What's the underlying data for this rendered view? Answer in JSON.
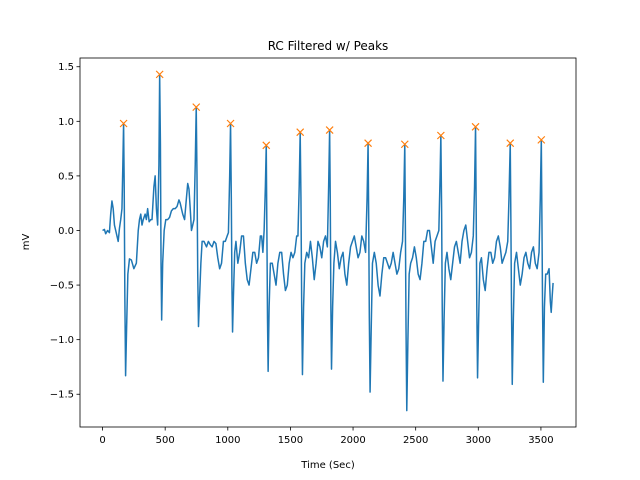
{
  "chart_data": {
    "type": "line",
    "title": "RC Filtered w/ Peaks",
    "xlabel": "Time (Sec)",
    "ylabel": "mV",
    "xlim": [
      -180,
      3780
    ],
    "ylim": [
      -1.8,
      1.58
    ],
    "xticks": [
      0,
      500,
      1000,
      1500,
      2000,
      2500,
      3000,
      3500
    ],
    "xtick_labels": [
      "0",
      "500",
      "1000",
      "1500",
      "2000",
      "2500",
      "3000",
      "3500"
    ],
    "yticks": [
      -1.5,
      -1.0,
      -0.5,
      0.0,
      0.5,
      1.0,
      1.5
    ],
    "ytick_labels": [
      "−1.5",
      "−1.0",
      "−0.5",
      "0.0",
      "0.5",
      "1.0",
      "1.5"
    ],
    "grid": false,
    "series": [
      {
        "color": "#1f77b4",
        "marker": "none",
        "points": [
          [
            0,
            0.0
          ],
          [
            15,
            0.01
          ],
          [
            25,
            -0.03
          ],
          [
            40,
            0.0
          ],
          [
            55,
            -0.02
          ],
          [
            65,
            0.15
          ],
          [
            75,
            0.27
          ],
          [
            85,
            0.2
          ],
          [
            95,
            0.05
          ],
          [
            105,
            0.0
          ],
          [
            115,
            -0.05
          ],
          [
            125,
            -0.1
          ],
          [
            135,
            0.02
          ],
          [
            145,
            0.1
          ],
          [
            155,
            0.2
          ],
          [
            162,
            0.6
          ],
          [
            168,
            0.98
          ],
          [
            173,
            0.4
          ],
          [
            178,
            -0.6
          ],
          [
            184,
            -1.33
          ],
          [
            192,
            -0.9
          ],
          [
            202,
            -0.4
          ],
          [
            215,
            -0.26
          ],
          [
            230,
            -0.27
          ],
          [
            250,
            -0.35
          ],
          [
            270,
            -0.3
          ],
          [
            285,
            0.0
          ],
          [
            295,
            0.1
          ],
          [
            305,
            0.15
          ],
          [
            315,
            0.05
          ],
          [
            325,
            0.1
          ],
          [
            340,
            0.15
          ],
          [
            350,
            0.1
          ],
          [
            360,
            0.2
          ],
          [
            372,
            0.08
          ],
          [
            385,
            0.1
          ],
          [
            395,
            0.1
          ],
          [
            410,
            0.4
          ],
          [
            420,
            0.5
          ],
          [
            430,
            0.2
          ],
          [
            440,
            0.05
          ],
          [
            450,
            0.6
          ],
          [
            456,
            1.43
          ],
          [
            462,
            0.8
          ],
          [
            467,
            -0.3
          ],
          [
            472,
            -0.82
          ],
          [
            480,
            -0.3
          ],
          [
            492,
            0.0
          ],
          [
            505,
            0.1
          ],
          [
            520,
            0.1
          ],
          [
            535,
            0.12
          ],
          [
            550,
            0.18
          ],
          [
            565,
            0.2
          ],
          [
            580,
            0.2
          ],
          [
            595,
            0.22
          ],
          [
            610,
            0.28
          ],
          [
            620,
            0.25
          ],
          [
            630,
            0.2
          ],
          [
            640,
            0.15
          ],
          [
            655,
            0.1
          ],
          [
            670,
            0.3
          ],
          [
            680,
            0.43
          ],
          [
            690,
            0.38
          ],
          [
            700,
            0.2
          ],
          [
            710,
            0.0
          ],
          [
            720,
            0.05
          ],
          [
            730,
            0.1
          ],
          [
            740,
            0.6
          ],
          [
            748,
            1.13
          ],
          [
            754,
            0.5
          ],
          [
            760,
            -0.4
          ],
          [
            766,
            -0.88
          ],
          [
            775,
            -0.6
          ],
          [
            785,
            -0.3
          ],
          [
            795,
            -0.1
          ],
          [
            810,
            -0.1
          ],
          [
            830,
            -0.15
          ],
          [
            845,
            -0.1
          ],
          [
            860,
            -0.13
          ],
          [
            875,
            -0.15
          ],
          [
            890,
            -0.1
          ],
          [
            905,
            -0.12
          ],
          [
            920,
            -0.25
          ],
          [
            935,
            -0.35
          ],
          [
            950,
            -0.3
          ],
          [
            965,
            -0.1
          ],
          [
            980,
            -0.1
          ],
          [
            995,
            -0.05
          ],
          [
            1005,
            -0.02
          ],
          [
            1015,
            0.5
          ],
          [
            1022,
            0.98
          ],
          [
            1028,
            0.3
          ],
          [
            1033,
            -0.5
          ],
          [
            1038,
            -0.93
          ],
          [
            1045,
            -0.6
          ],
          [
            1055,
            -0.2
          ],
          [
            1065,
            -0.1
          ],
          [
            1080,
            -0.3
          ],
          [
            1095,
            -0.2
          ],
          [
            1110,
            -0.05
          ],
          [
            1125,
            -0.05
          ],
          [
            1140,
            -0.3
          ],
          [
            1155,
            -0.45
          ],
          [
            1170,
            -0.5
          ],
          [
            1185,
            -0.35
          ],
          [
            1200,
            -0.2
          ],
          [
            1215,
            -0.2
          ],
          [
            1230,
            -0.3
          ],
          [
            1245,
            -0.25
          ],
          [
            1260,
            -0.05
          ],
          [
            1270,
            -0.05
          ],
          [
            1280,
            -0.2
          ],
          [
            1290,
            0.0
          ],
          [
            1300,
            0.4
          ],
          [
            1307,
            0.78
          ],
          [
            1312,
            0.0
          ],
          [
            1317,
            -0.8
          ],
          [
            1322,
            -1.29
          ],
          [
            1330,
            -0.7
          ],
          [
            1340,
            -0.3
          ],
          [
            1355,
            -0.3
          ],
          [
            1370,
            -0.4
          ],
          [
            1385,
            -0.5
          ],
          [
            1400,
            -0.3
          ],
          [
            1415,
            -0.2
          ],
          [
            1430,
            -0.2
          ],
          [
            1445,
            -0.4
          ],
          [
            1460,
            -0.55
          ],
          [
            1475,
            -0.5
          ],
          [
            1490,
            -0.3
          ],
          [
            1505,
            -0.2
          ],
          [
            1520,
            -0.25
          ],
          [
            1535,
            -0.2
          ],
          [
            1550,
            -0.05
          ],
          [
            1560,
            -0.05
          ],
          [
            1570,
            0.4
          ],
          [
            1578,
            0.9
          ],
          [
            1584,
            0.3
          ],
          [
            1590,
            -0.7
          ],
          [
            1596,
            -1.32
          ],
          [
            1605,
            -0.7
          ],
          [
            1615,
            -0.3
          ],
          [
            1630,
            -0.2
          ],
          [
            1645,
            -0.25
          ],
          [
            1660,
            -0.1
          ],
          [
            1675,
            -0.25
          ],
          [
            1690,
            -0.45
          ],
          [
            1705,
            -0.3
          ],
          [
            1720,
            -0.1
          ],
          [
            1735,
            -0.15
          ],
          [
            1750,
            -0.25
          ],
          [
            1765,
            -0.1
          ],
          [
            1780,
            -0.05
          ],
          [
            1795,
            -0.15
          ],
          [
            1805,
            0.4
          ],
          [
            1813,
            0.92
          ],
          [
            1818,
            0.3
          ],
          [
            1823,
            -0.7
          ],
          [
            1828,
            -1.27
          ],
          [
            1837,
            -0.7
          ],
          [
            1847,
            -0.3
          ],
          [
            1860,
            -0.1
          ],
          [
            1875,
            -0.2
          ],
          [
            1890,
            -0.35
          ],
          [
            1905,
            -0.25
          ],
          [
            1920,
            -0.2
          ],
          [
            1935,
            -0.4
          ],
          [
            1950,
            -0.5
          ],
          [
            1965,
            -0.3
          ],
          [
            1980,
            -0.15
          ],
          [
            1995,
            -0.1
          ],
          [
            2010,
            -0.05
          ],
          [
            2025,
            -0.15
          ],
          [
            2040,
            -0.25
          ],
          [
            2055,
            -0.2
          ],
          [
            2070,
            -0.05
          ],
          [
            2085,
            -0.1
          ],
          [
            2100,
            -0.2
          ],
          [
            2112,
            0.3
          ],
          [
            2120,
            0.8
          ],
          [
            2125,
            0.1
          ],
          [
            2130,
            -0.8
          ],
          [
            2136,
            -1.48
          ],
          [
            2145,
            -0.9
          ],
          [
            2155,
            -0.3
          ],
          [
            2170,
            -0.2
          ],
          [
            2185,
            -0.3
          ],
          [
            2200,
            -0.5
          ],
          [
            2215,
            -0.6
          ],
          [
            2230,
            -0.4
          ],
          [
            2245,
            -0.25
          ],
          [
            2260,
            -0.25
          ],
          [
            2275,
            -0.3
          ],
          [
            2290,
            -0.35
          ],
          [
            2305,
            -0.3
          ],
          [
            2320,
            -0.2
          ],
          [
            2335,
            -0.3
          ],
          [
            2350,
            -0.4
          ],
          [
            2365,
            -0.35
          ],
          [
            2380,
            -0.2
          ],
          [
            2395,
            -0.1
          ],
          [
            2405,
            0.3
          ],
          [
            2413,
            0.79
          ],
          [
            2418,
            0.0
          ],
          [
            2423,
            -0.9
          ],
          [
            2429,
            -1.65
          ],
          [
            2438,
            -1.0
          ],
          [
            2448,
            -0.4
          ],
          [
            2460,
            -0.3
          ],
          [
            2475,
            -0.25
          ],
          [
            2490,
            -0.15
          ],
          [
            2505,
            -0.25
          ],
          [
            2520,
            -0.4
          ],
          [
            2535,
            -0.45
          ],
          [
            2550,
            -0.3
          ],
          [
            2565,
            -0.1
          ],
          [
            2580,
            -0.1
          ],
          [
            2595,
            0.0
          ],
          [
            2610,
            0.0
          ],
          [
            2625,
            -0.15
          ],
          [
            2640,
            -0.3
          ],
          [
            2655,
            -0.1
          ],
          [
            2670,
            -0.05
          ],
          [
            2685,
            0.0
          ],
          [
            2695,
            0.5
          ],
          [
            2701,
            0.87
          ],
          [
            2707,
            0.2
          ],
          [
            2712,
            -0.7
          ],
          [
            2718,
            -1.38
          ],
          [
            2727,
            -0.8
          ],
          [
            2737,
            -0.3
          ],
          [
            2750,
            -0.2
          ],
          [
            2765,
            -0.35
          ],
          [
            2780,
            -0.45
          ],
          [
            2795,
            -0.3
          ],
          [
            2810,
            -0.15
          ],
          [
            2825,
            -0.1
          ],
          [
            2840,
            -0.2
          ],
          [
            2855,
            -0.3
          ],
          [
            2870,
            -0.1
          ],
          [
            2885,
            0.0
          ],
          [
            2900,
            0.05
          ],
          [
            2915,
            -0.1
          ],
          [
            2930,
            -0.25
          ],
          [
            2945,
            -0.2
          ],
          [
            2960,
            -0.05
          ],
          [
            2970,
            0.4
          ],
          [
            2978,
            0.95
          ],
          [
            2983,
            0.2
          ],
          [
            2988,
            -0.7
          ],
          [
            2994,
            -1.35
          ],
          [
            3003,
            -0.8
          ],
          [
            3013,
            -0.3
          ],
          [
            3025,
            -0.25
          ],
          [
            3040,
            -0.45
          ],
          [
            3055,
            -0.55
          ],
          [
            3070,
            -0.35
          ],
          [
            3085,
            -0.2
          ],
          [
            3100,
            -0.2
          ],
          [
            3115,
            -0.3
          ],
          [
            3130,
            -0.25
          ],
          [
            3145,
            -0.1
          ],
          [
            3160,
            -0.05
          ],
          [
            3175,
            -0.15
          ],
          [
            3190,
            -0.3
          ],
          [
            3205,
            -0.25
          ],
          [
            3220,
            -0.2
          ],
          [
            3235,
            -0.1
          ],
          [
            3245,
            0.3
          ],
          [
            3255,
            0.8
          ],
          [
            3260,
            0.1
          ],
          [
            3265,
            -0.7
          ],
          [
            3271,
            -1.41
          ],
          [
            3280,
            -0.8
          ],
          [
            3290,
            -0.3
          ],
          [
            3305,
            -0.2
          ],
          [
            3320,
            -0.35
          ],
          [
            3335,
            -0.5
          ],
          [
            3350,
            -0.4
          ],
          [
            3365,
            -0.25
          ],
          [
            3380,
            -0.2
          ],
          [
            3395,
            -0.3
          ],
          [
            3410,
            -0.35
          ],
          [
            3425,
            -0.2
          ],
          [
            3440,
            -0.15
          ],
          [
            3455,
            -0.3
          ],
          [
            3470,
            -0.35
          ],
          [
            3485,
            -0.2
          ],
          [
            3495,
            0.3
          ],
          [
            3503,
            0.83
          ],
          [
            3508,
            0.1
          ],
          [
            3513,
            -0.7
          ],
          [
            3519,
            -1.39
          ],
          [
            3528,
            -0.7
          ],
          [
            3538,
            -0.4
          ],
          [
            3550,
            -0.4
          ],
          [
            3565,
            -0.35
          ],
          [
            3575,
            -0.65
          ],
          [
            3582,
            -0.75
          ],
          [
            3590,
            -0.6
          ],
          [
            3597,
            -0.48
          ]
        ]
      },
      {
        "color": "#ff7f0e",
        "marker": "x",
        "points": [
          [
            168,
            0.98
          ],
          [
            456,
            1.43
          ],
          [
            748,
            1.13
          ],
          [
            1022,
            0.98
          ],
          [
            1307,
            0.78
          ],
          [
            1578,
            0.9
          ],
          [
            1813,
            0.92
          ],
          [
            2120,
            0.8
          ],
          [
            2413,
            0.79
          ],
          [
            2701,
            0.87
          ],
          [
            2978,
            0.95
          ],
          [
            3255,
            0.8
          ],
          [
            3503,
            0.83
          ]
        ]
      }
    ]
  }
}
